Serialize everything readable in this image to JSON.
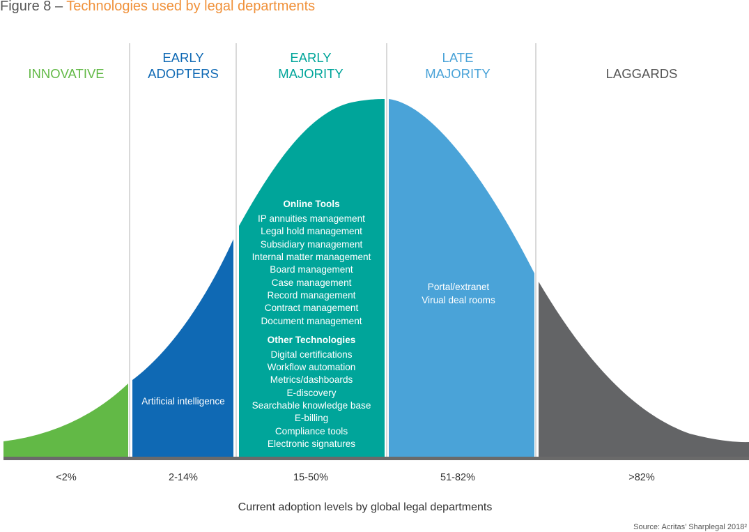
{
  "figure": {
    "prefix": "Figure 8",
    "dash": "–",
    "title": "Technologies used by legal departments"
  },
  "segments": [
    {
      "key": "innovative",
      "title_lines": [
        "INNOVATIVE"
      ],
      "range": "<2%",
      "color": "#62b946",
      "title_color": "#62b946",
      "items": [
        "Artificial intelligence"
      ]
    },
    {
      "key": "early_adopters",
      "title_lines": [
        "EARLY",
        "ADOPTERS"
      ],
      "range": "2-14%",
      "color": "#0f69b4",
      "title_color": "#0f69b4",
      "items": [
        "Artificial intelligence"
      ]
    },
    {
      "key": "early_majority",
      "title_lines": [
        "EARLY",
        "MAJORITY"
      ],
      "range": "15-50%",
      "color": "#00a59a",
      "title_color": "#00a59a",
      "groups": [
        {
          "heading": "Online Tools",
          "items": [
            "IP annuities management",
            "Legal hold management",
            "Subsidiary management",
            "Internal matter management",
            "Board management",
            "Case management",
            "Record management",
            "Contract management",
            "Document management"
          ]
        },
        {
          "heading": "Other Technologies",
          "items": [
            "Digital certifications",
            "Workflow automation",
            "Metrics/dashboards",
            "E-discovery",
            "Searchable knowledge base",
            "E-billing",
            "Compliance tools",
            "Electronic signatures"
          ]
        }
      ]
    },
    {
      "key": "late_majority",
      "title_lines": [
        "LATE",
        "MAJORITY"
      ],
      "range": "51-82%",
      "color": "#4aa3d8",
      "title_color": "#4aa3d8",
      "items": [
        "Portal/extranet",
        "Virual deal rooms"
      ]
    },
    {
      "key": "laggards",
      "title_lines": [
        "LAGGARDS"
      ],
      "range": ">82%",
      "color": "#636466",
      "title_color": "#555555",
      "items": []
    }
  ],
  "axis_label": "Current adoption levels by global legal departments",
  "source": "Source: Acritas’ Sharplegal 2018²"
}
